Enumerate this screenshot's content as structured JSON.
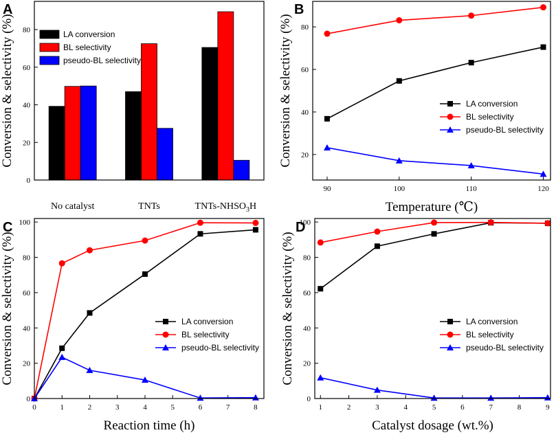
{
  "colors": {
    "black": "#000000",
    "red": "#ff0000",
    "blue": "#0000ff"
  },
  "chart_data": [
    {
      "panel": "A",
      "type": "bar",
      "categories": [
        "No catalyst",
        "TNTs",
        "TNTs-NHSO3H"
      ],
      "series": [
        {
          "name": "LA conversion",
          "values": [
            39.2,
            47,
            70.5
          ],
          "color": "#000000"
        },
        {
          "name": "BL selectivity",
          "values": [
            49.8,
            72.5,
            89.5
          ],
          "color": "#ff0000"
        },
        {
          "name": "pseudo-BL selectivity",
          "values": [
            50,
            27.5,
            10.5
          ],
          "color": "#0000ff"
        }
      ],
      "ylabel": "Conversion & selectivity (%)",
      "xlabel": "",
      "ylim": [
        0,
        95
      ],
      "yticks": [
        0,
        20,
        40,
        60,
        80
      ],
      "legend": "top-left"
    },
    {
      "panel": "B",
      "type": "line",
      "x": [
        90,
        100,
        110,
        120
      ],
      "series": [
        {
          "name": "LA conversion",
          "values": [
            36.8,
            54.6,
            63.2,
            70.5
          ],
          "color": "#000000",
          "marker": "square"
        },
        {
          "name": "BL selectivity",
          "values": [
            76.8,
            83.1,
            85.3,
            89.2
          ],
          "color": "#ff0000",
          "marker": "circle"
        },
        {
          "name": "pseudo-BL selectivity",
          "values": [
            23.2,
            17.1,
            14.8,
            10.8
          ],
          "color": "#0000ff",
          "marker": "triangle"
        }
      ],
      "xlabel": "Temperature (℃)",
      "ylabel": "Conversion & selectivity (%)",
      "xlim": [
        88,
        121
      ],
      "ylim": [
        8,
        92
      ],
      "xticks": [
        90,
        100,
        110,
        120
      ],
      "yticks": [
        20,
        40,
        60,
        80
      ],
      "legend": "center-right"
    },
    {
      "panel": "C",
      "type": "line",
      "x": [
        0,
        1,
        2,
        4,
        6,
        8
      ],
      "series": [
        {
          "name": "LA conversion",
          "values": [
            0,
            28.5,
            48.5,
            70.5,
            93.3,
            95.6
          ],
          "color": "#000000",
          "marker": "square"
        },
        {
          "name": "BL selectivity",
          "values": [
            0,
            76.6,
            84,
            89.5,
            99.6,
            99.5
          ],
          "color": "#ff0000",
          "marker": "circle"
        },
        {
          "name": "pseudo-BL selectivity",
          "values": [
            0,
            23.4,
            16,
            10.5,
            0.3,
            0.5
          ],
          "color": "#0000ff",
          "marker": "triangle"
        }
      ],
      "xlabel": "Reaction time (h)",
      "ylabel": "Conversion & selectivity (%)",
      "xlim": [
        0,
        8.3
      ],
      "ylim": [
        0,
        102
      ],
      "xticks": [
        0,
        1,
        2,
        3,
        4,
        5,
        6,
        7,
        8
      ],
      "yticks": [
        0,
        20,
        40,
        60,
        80,
        100
      ],
      "legend": "lower-right"
    },
    {
      "panel": "D",
      "type": "line",
      "x": [
        1,
        3,
        5,
        7,
        9
      ],
      "series": [
        {
          "name": "LA conversion",
          "values": [
            62.2,
            86.3,
            93.3,
            99.6,
            99.3
          ],
          "color": "#000000",
          "marker": "square"
        },
        {
          "name": "BL selectivity",
          "values": [
            88.4,
            94.6,
            99.7,
            99.8,
            99.3
          ],
          "color": "#ff0000",
          "marker": "circle"
        },
        {
          "name": "pseudo-BL selectivity",
          "values": [
            11.8,
            4.8,
            0.3,
            0.3,
            0.5
          ],
          "color": "#0000ff",
          "marker": "triangle"
        }
      ],
      "xlabel": "Catalyst dosage (wt.%)",
      "ylabel": "Conversion & selectivity (%)",
      "xlim": [
        0.8,
        9.1
      ],
      "ylim": [
        0,
        102
      ],
      "xticks": [
        1,
        2,
        3,
        4,
        5,
        6,
        7,
        8,
        9
      ],
      "yticks": [
        0,
        20,
        40,
        60,
        80,
        100
      ],
      "legend": "center-right"
    }
  ]
}
